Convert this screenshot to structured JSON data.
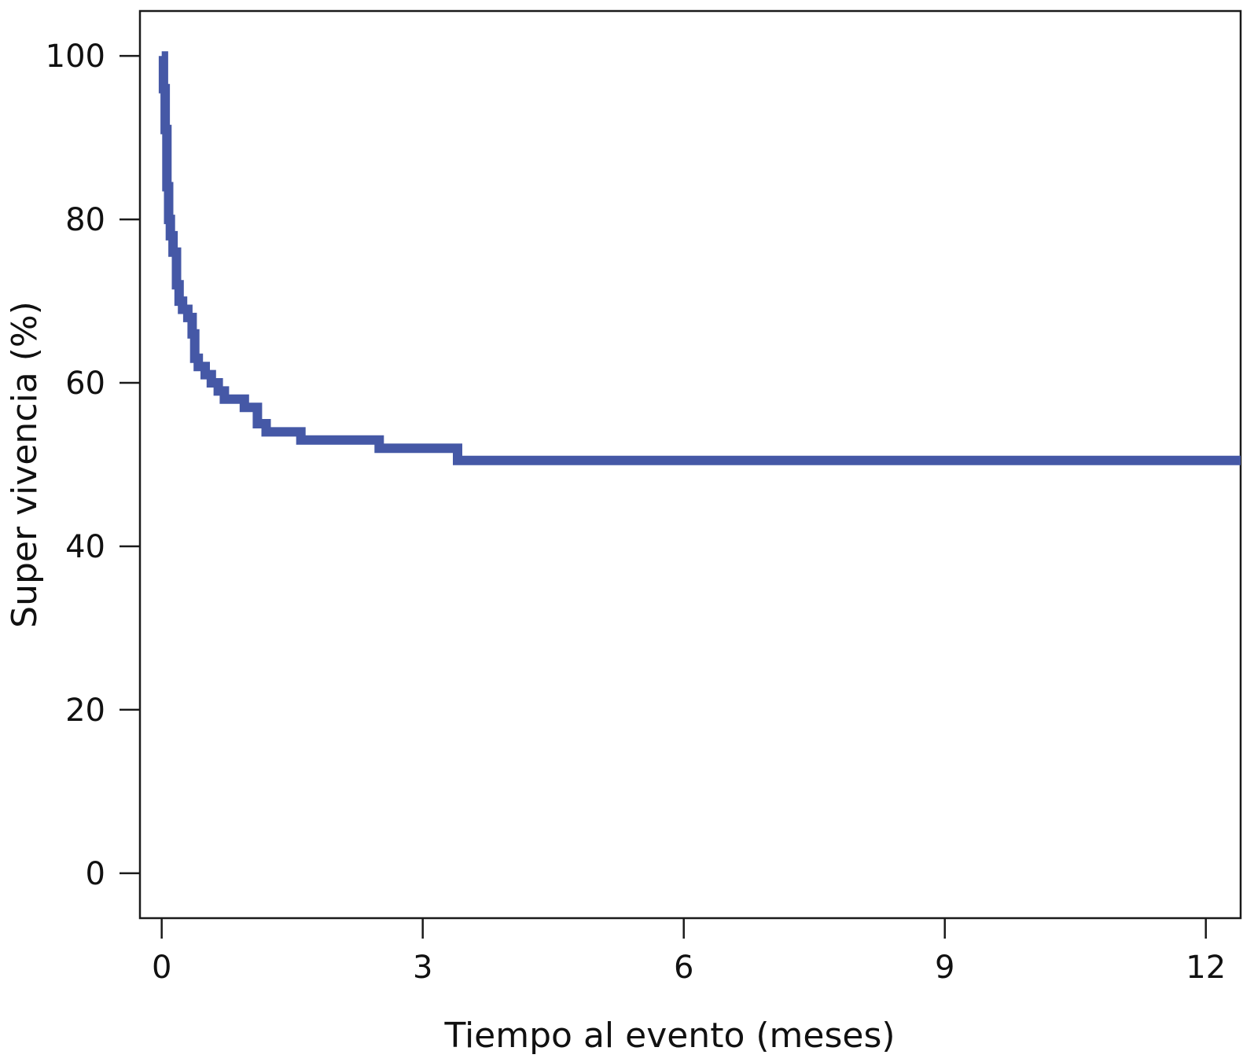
{
  "chart_data": {
    "type": "line",
    "subtype": "kaplan-meier step curve",
    "xlabel": "Tiempo al evento (meses)",
    "ylabel": "Super vivencia (%)",
    "xlim": [
      -0.25,
      12.4
    ],
    "ylim": [
      -5.5,
      105.5
    ],
    "xticks": [
      0,
      3,
      6,
      9,
      12
    ],
    "xtick_labels": [
      "0",
      "3",
      "6",
      "9",
      "12"
    ],
    "yticks": [
      0,
      20,
      40,
      60,
      80,
      100
    ],
    "ytick_labels": [
      "0",
      "20",
      "40",
      "60",
      "80",
      "100"
    ],
    "grid": false,
    "legend": "none",
    "colors": {
      "series": "#4558a6",
      "axes": "#1a1a1a"
    },
    "series": [
      {
        "step": "post",
        "x": [
          0,
          0.02,
          0.04,
          0.06,
          0.08,
          0.1,
          0.13,
          0.17,
          0.2,
          0.24,
          0.3,
          0.35,
          0.38,
          0.42,
          0.5,
          0.57,
          0.65,
          0.72,
          0.95,
          1.1,
          1.2,
          1.6,
          2.5,
          3.4,
          12.4
        ],
        "y": [
          100,
          96,
          91,
          84,
          80,
          78,
          76,
          72,
          70,
          69,
          68,
          66,
          63,
          62,
          61,
          60,
          59,
          58,
          57,
          55,
          54,
          53,
          52,
          50.5,
          50.5
        ]
      }
    ]
  }
}
